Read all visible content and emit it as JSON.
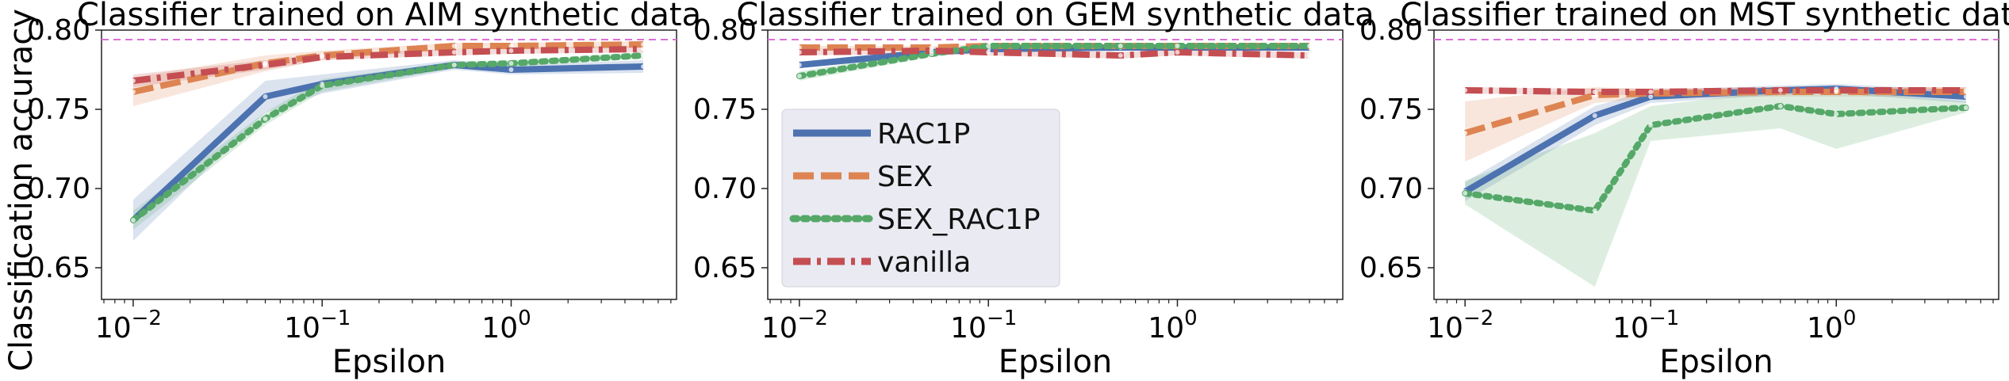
{
  "figure": {
    "ylabel": "Classification accuracy",
    "reference_line_color": "#da70d6",
    "legend": {
      "placement": "center-left of middle panel",
      "entries": [
        {
          "label": "RAC1P",
          "color": "#4c72b0",
          "style": "solid"
        },
        {
          "label": "SEX",
          "color": "#dd8452",
          "style": "dashed"
        },
        {
          "label": "SEX_RAC1P",
          "color": "#55a868",
          "style": "dotted"
        },
        {
          "label": "vanilla",
          "color": "#c44e52",
          "style": "dashdot"
        }
      ]
    }
  },
  "chart_data": [
    {
      "type": "line",
      "title": "Classifier trained on AIM synthetic data",
      "xlabel": "Epsilon",
      "ylabel": "Classification accuracy",
      "xscale": "log",
      "xlim": [
        0.0068,
        7.5
      ],
      "ylim": [
        0.63,
        0.8
      ],
      "x": [
        0.01,
        0.05,
        0.1,
        0.5,
        1,
        5
      ],
      "xticks": [
        "10^-2",
        "10^-1",
        "10^0"
      ],
      "yticks": [
        "0.65",
        "0.70",
        "0.75",
        "0.80"
      ],
      "reference_line": 0.794,
      "series": [
        {
          "name": "RAC1P",
          "values": [
            0.68,
            0.758,
            0.766,
            0.778,
            0.775,
            0.777
          ],
          "lower": [
            0.667,
            0.748,
            0.76,
            0.775,
            0.772,
            0.773
          ],
          "upper": [
            0.693,
            0.768,
            0.772,
            0.781,
            0.778,
            0.781
          ]
        },
        {
          "name": "SEX",
          "values": [
            0.761,
            0.779,
            0.784,
            0.79,
            0.79,
            0.791
          ],
          "lower": [
            0.752,
            0.774,
            0.781,
            0.788,
            0.788,
            0.789
          ],
          "upper": [
            0.77,
            0.784,
            0.787,
            0.792,
            0.792,
            0.793
          ]
        },
        {
          "name": "SEX_RAC1P",
          "values": [
            0.68,
            0.744,
            0.765,
            0.778,
            0.779,
            0.784
          ],
          "lower": [
            0.674,
            0.74,
            0.761,
            0.776,
            0.777,
            0.782
          ],
          "upper": [
            0.686,
            0.748,
            0.769,
            0.78,
            0.781,
            0.786
          ]
        },
        {
          "name": "vanilla",
          "values": [
            0.768,
            0.778,
            0.783,
            0.786,
            0.787,
            0.788
          ],
          "lower": [
            0.764,
            0.775,
            0.781,
            0.784,
            0.785,
            0.786
          ],
          "upper": [
            0.772,
            0.781,
            0.785,
            0.788,
            0.789,
            0.79
          ]
        }
      ]
    },
    {
      "type": "line",
      "title": "Classifier trained on GEM synthetic data",
      "xlabel": "Epsilon",
      "xscale": "log",
      "xlim": [
        0.0068,
        7.5
      ],
      "ylim": [
        0.63,
        0.8
      ],
      "x": [
        0.01,
        0.05,
        0.1,
        0.5,
        1,
        5
      ],
      "xticks": [
        "10^-2",
        "10^-1",
        "10^0"
      ],
      "yticks": [
        "0.65",
        "0.70",
        "0.75",
        "0.80"
      ],
      "reference_line": 0.794,
      "series": [
        {
          "name": "RAC1P",
          "values": [
            0.778,
            0.786,
            0.788,
            0.789,
            0.789,
            0.789
          ],
          "lower": [
            0.776,
            0.784,
            0.786,
            0.787,
            0.787,
            0.787
          ],
          "upper": [
            0.78,
            0.788,
            0.79,
            0.791,
            0.791,
            0.791
          ]
        },
        {
          "name": "SEX",
          "values": [
            0.789,
            0.789,
            0.79,
            0.79,
            0.79,
            0.79
          ],
          "lower": [
            0.788,
            0.788,
            0.789,
            0.789,
            0.789,
            0.789
          ],
          "upper": [
            0.79,
            0.79,
            0.791,
            0.791,
            0.791,
            0.791
          ]
        },
        {
          "name": "SEX_RAC1P",
          "values": [
            0.771,
            0.785,
            0.79,
            0.79,
            0.79,
            0.79
          ],
          "lower": [
            0.768,
            0.783,
            0.789,
            0.789,
            0.789,
            0.789
          ],
          "upper": [
            0.774,
            0.787,
            0.791,
            0.791,
            0.791,
            0.791
          ]
        },
        {
          "name": "vanilla",
          "values": [
            0.786,
            0.787,
            0.786,
            0.784,
            0.786,
            0.784
          ],
          "lower": [
            0.784,
            0.785,
            0.784,
            0.782,
            0.784,
            0.782
          ],
          "upper": [
            0.788,
            0.789,
            0.788,
            0.786,
            0.788,
            0.786
          ]
        }
      ]
    },
    {
      "type": "line",
      "title": "Classifier trained on MST synthetic data",
      "xlabel": "Epsilon",
      "xscale": "log",
      "xlim": [
        0.0068,
        7.5
      ],
      "ylim": [
        0.63,
        0.8
      ],
      "x": [
        0.01,
        0.05,
        0.1,
        0.5,
        1,
        5
      ],
      "xticks": [
        "10^-2",
        "10^-1",
        "10^0"
      ],
      "yticks": [
        "0.65",
        "0.70",
        "0.75",
        "0.80"
      ],
      "reference_line": 0.794,
      "series": [
        {
          "name": "RAC1P",
          "values": [
            0.698,
            0.746,
            0.758,
            0.762,
            0.763,
            0.758
          ],
          "lower": [
            0.692,
            0.74,
            0.754,
            0.759,
            0.76,
            0.754
          ],
          "upper": [
            0.704,
            0.752,
            0.762,
            0.765,
            0.766,
            0.762
          ]
        },
        {
          "name": "SEX",
          "values": [
            0.735,
            0.759,
            0.76,
            0.761,
            0.761,
            0.761
          ],
          "lower": [
            0.717,
            0.754,
            0.757,
            0.758,
            0.758,
            0.758
          ],
          "upper": [
            0.755,
            0.764,
            0.763,
            0.764,
            0.764,
            0.764
          ]
        },
        {
          "name": "SEX_RAC1P",
          "values": [
            0.697,
            0.686,
            0.74,
            0.752,
            0.747,
            0.751
          ],
          "lower": [
            0.69,
            0.638,
            0.73,
            0.738,
            0.725,
            0.748
          ],
          "upper": [
            0.705,
            0.735,
            0.752,
            0.762,
            0.762,
            0.755
          ]
        },
        {
          "name": "vanilla",
          "values": [
            0.762,
            0.761,
            0.761,
            0.762,
            0.762,
            0.762
          ],
          "lower": [
            0.76,
            0.759,
            0.759,
            0.76,
            0.76,
            0.76
          ],
          "upper": [
            0.764,
            0.763,
            0.763,
            0.764,
            0.764,
            0.764
          ]
        }
      ]
    }
  ]
}
